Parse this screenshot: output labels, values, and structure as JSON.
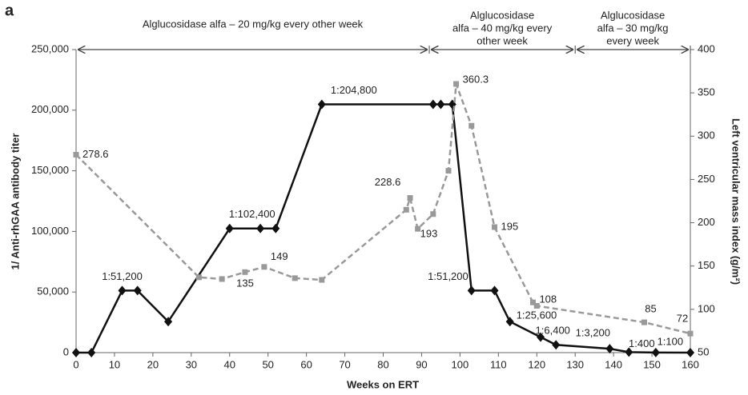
{
  "chart_data": {
    "type": "line",
    "panel_label": "a",
    "xlabel": "Weeks on ERT",
    "ylabel": "1/ Anti-rhGAA antibody titer",
    "y2label": "Left ventricular mass index (g/m²)",
    "xlim": [
      0,
      160
    ],
    "xticks": [
      0,
      10,
      20,
      30,
      40,
      50,
      60,
      70,
      80,
      90,
      100,
      110,
      120,
      130,
      140,
      150,
      160
    ],
    "ylim": [
      0,
      250000
    ],
    "yticks": [
      0,
      {
        "value": 50000,
        "label": "50,000"
      },
      {
        "value": 100000,
        "label": "100,000"
      },
      {
        "value": 150000,
        "label": "150,000"
      },
      {
        "value": 200000,
        "label": "200,000"
      },
      {
        "value": 250000,
        "label": "250,000"
      }
    ],
    "y2lim": [
      50,
      400
    ],
    "y2ticks": [
      50,
      100,
      150,
      200,
      250,
      300,
      350,
      400
    ],
    "periods": [
      {
        "start": 0,
        "end": 92,
        "lines": [
          "Alglucosidase alfa – 20 mg/kg every other week"
        ]
      },
      {
        "start": 92,
        "end": 130,
        "lines": [
          "Alglucosidase",
          "alfa – 40 mg/kg every",
          "other week"
        ]
      },
      {
        "start": 130,
        "end": 160,
        "lines": [
          "Alglucosidase",
          "alfa – 30 mg/kg",
          "every week"
        ]
      }
    ],
    "series": [
      {
        "color": "#111111",
        "marker": "diamond",
        "dashed": false,
        "x": [
          0,
          4,
          12,
          16,
          24,
          40,
          48,
          52,
          64,
          93,
          95,
          98,
          103,
          109,
          113,
          121,
          125,
          139,
          144,
          151,
          160
        ],
        "values": [
          0,
          0,
          51200,
          51200,
          25600,
          102400,
          102400,
          102400,
          204800,
          204800,
          204800,
          204800,
          51200,
          51200,
          25600,
          12800,
          6400,
          3200,
          400,
          100,
          0
        ],
        "value_labels": [
          null,
          null,
          "1:51,200",
          null,
          null,
          "1:102,400",
          null,
          null,
          "1:204,800",
          null,
          null,
          null,
          "1:51,200",
          null,
          "1:25,600",
          null,
          "1:6,400",
          "1:3,200",
          "1:400",
          "1:100",
          null
        ]
      },
      {
        "color": "#999999",
        "marker": "square",
        "dashed": true,
        "axis": "y2",
        "x": [
          0,
          32,
          38,
          44,
          49,
          57,
          64,
          86,
          87,
          89,
          93,
          97,
          99,
          103,
          109,
          119,
          120,
          148,
          160
        ],
        "values": [
          278.6,
          137,
          135,
          143,
          149,
          136,
          134,
          215,
          228.6,
          193,
          210,
          260,
          360.3,
          312,
          195,
          108,
          104,
          85,
          72
        ],
        "value_labels": [
          "278.6",
          null,
          "135",
          null,
          "149",
          null,
          null,
          null,
          "228.6",
          "193",
          null,
          null,
          "360.3",
          null,
          "195",
          "108",
          null,
          "85",
          "72"
        ]
      }
    ]
  }
}
